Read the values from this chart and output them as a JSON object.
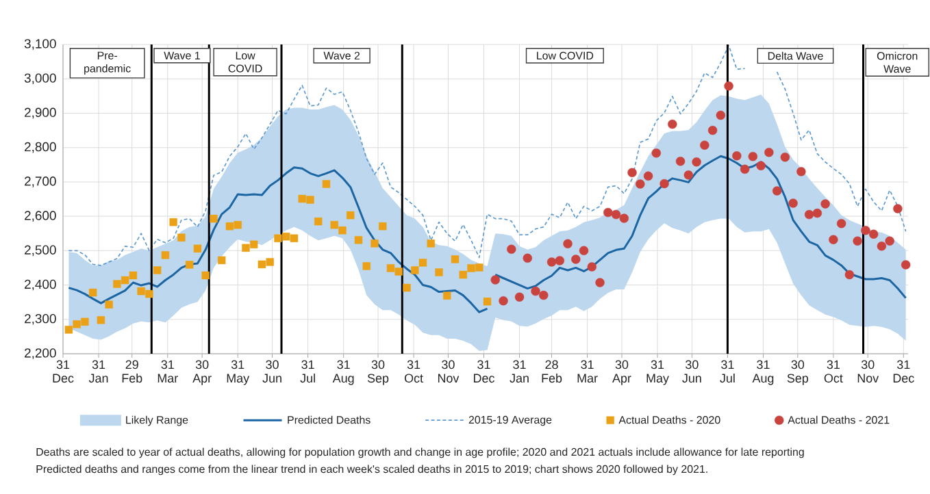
{
  "chart_data": {
    "type": "line",
    "x": [
      "2020-01-05",
      "2020-01-12",
      "2020-01-19",
      "2020-01-26",
      "2020-02-02",
      "2020-02-09",
      "2020-02-16",
      "2020-02-23",
      "2020-03-01",
      "2020-03-08",
      "2020-03-15",
      "2020-03-22",
      "2020-03-29",
      "2020-04-05",
      "2020-04-12",
      "2020-04-19",
      "2020-04-26",
      "2020-05-03",
      "2020-05-10",
      "2020-05-17",
      "2020-05-24",
      "2020-05-31",
      "2020-06-07",
      "2020-06-14",
      "2020-06-21",
      "2020-06-28",
      "2020-07-05",
      "2020-07-12",
      "2020-07-19",
      "2020-07-26",
      "2020-08-02",
      "2020-08-09",
      "2020-08-16",
      "2020-08-23",
      "2020-08-30",
      "2020-09-06",
      "2020-09-13",
      "2020-09-20",
      "2020-09-27",
      "2020-10-04",
      "2020-10-11",
      "2020-10-18",
      "2020-10-25",
      "2020-11-01",
      "2020-11-08",
      "2020-11-15",
      "2020-11-22",
      "2020-11-29",
      "2020-12-06",
      "2020-12-13",
      "2020-12-20",
      "2020-12-27",
      "2021-01-03",
      "2021-01-10",
      "2021-01-17",
      "2021-01-24",
      "2021-01-31",
      "2021-02-07",
      "2021-02-14",
      "2021-02-21",
      "2021-02-28",
      "2021-03-07",
      "2021-03-14",
      "2021-03-21",
      "2021-03-28",
      "2021-04-04",
      "2021-04-11",
      "2021-04-18",
      "2021-04-25",
      "2021-05-02",
      "2021-05-09",
      "2021-05-16",
      "2021-05-23",
      "2021-05-30",
      "2021-06-06",
      "2021-06-13",
      "2021-06-20",
      "2021-06-27",
      "2021-07-04",
      "2021-07-11",
      "2021-07-18",
      "2021-07-25",
      "2021-08-01",
      "2021-08-08",
      "2021-08-15",
      "2021-08-22",
      "2021-08-29",
      "2021-09-05",
      "2021-09-12",
      "2021-09-19",
      "2021-09-26",
      "2021-10-03",
      "2021-10-10",
      "2021-10-17",
      "2021-10-24",
      "2021-10-31",
      "2021-11-07",
      "2021-11-14",
      "2021-11-21",
      "2021-11-28",
      "2021-12-05",
      "2021-12-12",
      "2021-12-19",
      "2021-12-26",
      "2022-01-02"
    ],
    "xlim": [
      "2019-12-31",
      "2022-01-04"
    ],
    "xticks": [
      {
        "value": "2019-12-31",
        "label": "31 Dec"
      },
      {
        "value": "2020-01-31",
        "label": "31 Jan"
      },
      {
        "value": "2020-02-29",
        "label": "29 Feb"
      },
      {
        "value": "2020-03-31",
        "label": "31 Mar"
      },
      {
        "value": "2020-04-30",
        "label": "30 Apr"
      },
      {
        "value": "2020-05-31",
        "label": "31 May"
      },
      {
        "value": "2020-06-30",
        "label": "30 Jun"
      },
      {
        "value": "2020-07-31",
        "label": "31 Jul"
      },
      {
        "value": "2020-08-31",
        "label": "31 Aug"
      },
      {
        "value": "2020-09-30",
        "label": "30 Sep"
      },
      {
        "value": "2020-10-31",
        "label": "31 Oct"
      },
      {
        "value": "2020-11-30",
        "label": "30 Nov"
      },
      {
        "value": "2020-12-31",
        "label": "31 Dec"
      },
      {
        "value": "2021-01-31",
        "label": "31 Jan"
      },
      {
        "value": "2021-02-28",
        "label": "28 Feb"
      },
      {
        "value": "2021-03-31",
        "label": "31 Mar"
      },
      {
        "value": "2021-04-30",
        "label": "30 Apr"
      },
      {
        "value": "2021-05-31",
        "label": "31 May"
      },
      {
        "value": "2021-06-30",
        "label": "30 Jun"
      },
      {
        "value": "2021-07-31",
        "label": "31 Jul"
      },
      {
        "value": "2021-08-31",
        "label": "31 Aug"
      },
      {
        "value": "2021-09-30",
        "label": "30 Sep"
      },
      {
        "value": "2021-10-31",
        "label": "31 Oct"
      },
      {
        "value": "2021-11-30",
        "label": "30 Nov"
      },
      {
        "value": "2021-12-31",
        "label": "31 Dec"
      }
    ],
    "ylim": [
      2200,
      3100
    ],
    "yticks": [
      {
        "value": 2200,
        "label": "2,200"
      },
      {
        "value": 2300,
        "label": "2,300"
      },
      {
        "value": 2400,
        "label": "2,400"
      },
      {
        "value": 2500,
        "label": "2,500"
      },
      {
        "value": 2600,
        "label": "2,600"
      },
      {
        "value": 2700,
        "label": "2,700"
      },
      {
        "value": 2800,
        "label": "2,800"
      },
      {
        "value": 2900,
        "label": "2,900"
      },
      {
        "value": 3000,
        "label": "3,000"
      },
      {
        "value": 3100,
        "label": "3,100"
      }
    ],
    "grid": true,
    "legend": "bottom",
    "series": [
      {
        "name": "Likely Range",
        "type": "area",
        "color": "#bdd7ee",
        "values": [
          null,
          null,
          null,
          null,
          null,
          null,
          null,
          null,
          null,
          null,
          null,
          null,
          null,
          null,
          null,
          null,
          null,
          null,
          null,
          null,
          null,
          null,
          null,
          null,
          null,
          null,
          null,
          null,
          null,
          null,
          null,
          null,
          null,
          null,
          null,
          null,
          null,
          null,
          null,
          null,
          null,
          null,
          null,
          null,
          null,
          null,
          null,
          null,
          null,
          null,
          null,
          null,
          null,
          null,
          null,
          null,
          null,
          null,
          null,
          null,
          null,
          null,
          null,
          null,
          null,
          null,
          null,
          null,
          null,
          null,
          null,
          null,
          null,
          null,
          null,
          null,
          null,
          null,
          null,
          null,
          null,
          null,
          null,
          null,
          null,
          null,
          null,
          null,
          null,
          null,
          null,
          null,
          null,
          null,
          null,
          null,
          null,
          null,
          null,
          null,
          null,
          null,
          null,
          null,
          null
        ],
        "lower": [
          2274,
          2264,
          2254,
          2244,
          2241,
          2251,
          2264,
          2274,
          2288,
          2294,
          2291,
          2297,
          2291,
          2311,
          2334,
          2344,
          2351,
          2384,
          2450,
          2483,
          2510,
          2533,
          2526,
          2523,
          2516,
          2530,
          2546,
          2559,
          2569,
          2559,
          2543,
          2530,
          2536,
          2543,
          2536,
          2503,
          2445,
          2370,
          2344,
          2327,
          2327,
          2314,
          2297,
          2284,
          2261,
          2254,
          2254,
          2244,
          2244,
          2238,
          2228,
          2208,
          2211,
          2305,
          2298,
          2294,
          2281,
          2279,
          2288,
          2301,
          2311,
          2327,
          2327,
          2337,
          2324,
          2337,
          2360,
          2377,
          2387,
          2387,
          2437,
          2496,
          2533,
          2559,
          2580,
          2566,
          2559,
          2550,
          2569,
          2583,
          2589,
          2593,
          2593,
          2569,
          2553,
          2556,
          2556,
          2563,
          2523,
          2463,
          2404,
          2370,
          2341,
          2327,
          2314,
          2307,
          2297,
          2284,
          2281,
          2278,
          2281,
          2278,
          2271,
          2258,
          2238
        ],
        "upper": [
          2496,
          2493,
          2473,
          2457,
          2457,
          2470,
          2473,
          2487,
          2496,
          2506,
          2500,
          2510,
          2520,
          2530,
          2557,
          2569,
          2573,
          2599,
          2680,
          2715,
          2755,
          2785,
          2795,
          2808,
          2828,
          2861,
          2891,
          2911,
          2916,
          2916,
          2911,
          2911,
          2918,
          2924,
          2911,
          2881,
          2835,
          2775,
          2729,
          2682,
          2656,
          2629,
          2603,
          2593,
          2569,
          2526,
          2516,
          2513,
          2503,
          2490,
          2473,
          2463,
          2455,
          2550,
          2548,
          2543,
          2513,
          2503,
          2510,
          2530,
          2543,
          2556,
          2559,
          2569,
          2583,
          2589,
          2596,
          2612,
          2619,
          2632,
          2682,
          2729,
          2775,
          2808,
          2841,
          2848,
          2848,
          2851,
          2874,
          2908,
          2938,
          2952,
          2949,
          2942,
          2938,
          2946,
          2954,
          2928,
          2868,
          2802,
          2765,
          2740,
          2709,
          2682,
          2656,
          2632,
          2603,
          2589,
          2579,
          2569,
          2556,
          2553,
          2543,
          2523,
          2503
        ]
      },
      {
        "name": "Predicted Deaths",
        "type": "line",
        "color": "#1c65a3",
        "line_style": "solid",
        "marker": "none",
        "x": [
          "2020-01-05",
          "2020-01-12",
          "2020-01-19",
          "2020-01-26",
          "2020-02-02",
          "2020-02-09",
          "2020-02-16",
          "2020-02-23",
          "2020-03-01",
          "2020-03-08",
          "2020-03-15",
          "2020-03-22",
          "2020-03-29",
          "2020-04-05",
          "2020-04-12",
          "2020-04-19",
          "2020-04-26",
          "2020-05-03",
          "2020-05-10",
          "2020-05-17",
          "2020-05-24",
          "2020-05-31",
          "2020-06-07",
          "2020-06-14",
          "2020-06-21",
          "2020-06-28",
          "2020-07-05",
          "2020-07-12",
          "2020-07-19",
          "2020-07-26",
          "2020-08-02",
          "2020-08-09",
          "2020-08-16",
          "2020-08-23",
          "2020-08-30",
          "2020-09-06",
          "2020-09-13",
          "2020-09-20",
          "2020-09-27",
          "2020-10-04",
          "2020-10-11",
          "2020-10-18",
          "2020-10-25",
          "2020-11-01",
          "2020-11-08",
          "2020-11-15",
          "2020-11-22",
          "2020-11-29",
          "2020-12-06",
          "2020-12-13",
          "2020-12-20",
          "2020-12-27",
          "2021-01-03"
        ],
        "values": [
          2392,
          2385,
          2374,
          2360,
          2347,
          2360,
          2372,
          2384,
          2407,
          2399,
          2405,
          2395,
          2414,
          2430,
          2450,
          2460,
          2463,
          2503,
          2560,
          2606,
          2626,
          2664,
          2662,
          2664,
          2662,
          2689,
          2705,
          2725,
          2742,
          2739,
          2725,
          2717,
          2725,
          2734,
          2712,
          2685,
          2626,
          2566,
          2530,
          2503,
          2493,
          2467,
          2447,
          2430,
          2400,
          2394,
          2380,
          2382,
          2384,
          2370,
          2347,
          2321,
          2331
        ]
      },
      {
        "type": "line",
        "color": "#1c65a3",
        "line_style": "solid",
        "marker": "none",
        "x": [
          "2021-01-10",
          "2021-01-17",
          "2021-01-24",
          "2021-01-31",
          "2021-02-07",
          "2021-02-14",
          "2021-02-21",
          "2021-02-28",
          "2021-03-07",
          "2021-03-14",
          "2021-03-21",
          "2021-03-28",
          "2021-04-04",
          "2021-04-11",
          "2021-04-18",
          "2021-04-25",
          "2021-05-02",
          "2021-05-09",
          "2021-05-16",
          "2021-05-23",
          "2021-05-30",
          "2021-06-06",
          "2021-06-13",
          "2021-06-20",
          "2021-06-27",
          "2021-07-04",
          "2021-07-11",
          "2021-07-18",
          "2021-07-25",
          "2021-08-01",
          "2021-08-08",
          "2021-08-15",
          "2021-08-22",
          "2021-08-29",
          "2021-09-05",
          "2021-09-12",
          "2021-09-19",
          "2021-09-26",
          "2021-10-03",
          "2021-10-10",
          "2021-10-17",
          "2021-10-24",
          "2021-10-31",
          "2021-11-07",
          "2021-11-14",
          "2021-11-21",
          "2021-11-28",
          "2021-12-05",
          "2021-12-12",
          "2021-12-19",
          "2021-12-26",
          "2022-01-02"
        ],
        "values": [
          2430,
          2420,
          2410,
          2400,
          2390,
          2397,
          2414,
          2427,
          2450,
          2443,
          2450,
          2440,
          2453,
          2473,
          2493,
          2502,
          2506,
          2543,
          2603,
          2652,
          2672,
          2695,
          2710,
          2705,
          2699,
          2729,
          2748,
          2762,
          2775,
          2768,
          2755,
          2739,
          2745,
          2758,
          2739,
          2709,
          2656,
          2589,
          2556,
          2526,
          2516,
          2486,
          2473,
          2457,
          2433,
          2425,
          2417,
          2417,
          2420,
          2414,
          2390,
          2362
        ]
      },
      {
        "name": "2015-19 Average",
        "type": "line",
        "color": "#5d9ad2",
        "line_style": "dashed",
        "marker": "none",
        "values": [
          2500,
          2500,
          2488,
          2460,
          2457,
          2467,
          2477,
          2513,
          2510,
          2550,
          2500,
          2533,
          2523,
          2536,
          2589,
          2593,
          2569,
          2616,
          2719,
          2729,
          2775,
          2802,
          2841,
          2795,
          2828,
          2868,
          2908,
          2898,
          2941,
          2981,
          2921,
          2924,
          2973,
          2955,
          2962,
          2908,
          2845,
          2768,
          2722,
          2755,
          2685,
          2669,
          2649,
          2629,
          2603,
          2530,
          2583,
          2550,
          2528,
          2576,
          2530,
          2480,
          2606,
          2593,
          2593,
          2586,
          2546,
          2546,
          2563,
          2569,
          2606,
          2596,
          2641,
          2593,
          2629,
          2616,
          2629,
          2685,
          2689,
          2666,
          2709,
          2815,
          2825,
          2878,
          2901,
          2949,
          2898,
          2928,
          2964,
          3017,
          3004,
          3047,
          3097,
          3028,
          3030,
          null,
          null,
          null,
          3020,
          2970,
          2900,
          2822,
          2851,
          2782,
          2758,
          2739,
          2722,
          2695,
          2629,
          2679,
          2642,
          2616,
          2676,
          2629,
          2556
        ]
      },
      {
        "name": "Actual Deaths - 2020",
        "type": "scatter",
        "color": "#eba117",
        "marker": "square",
        "x": [
          "2020-01-05",
          "2020-01-12",
          "2020-01-19",
          "2020-01-26",
          "2020-02-02",
          "2020-02-09",
          "2020-02-16",
          "2020-02-23",
          "2020-03-01",
          "2020-03-08",
          "2020-03-15",
          "2020-03-22",
          "2020-03-29",
          "2020-04-05",
          "2020-04-12",
          "2020-04-19",
          "2020-04-26",
          "2020-05-03",
          "2020-05-10",
          "2020-05-17",
          "2020-05-24",
          "2020-05-31",
          "2020-06-07",
          "2020-06-14",
          "2020-06-21",
          "2020-06-28",
          "2020-07-05",
          "2020-07-12",
          "2020-07-19",
          "2020-07-26",
          "2020-08-02",
          "2020-08-09",
          "2020-08-16",
          "2020-08-23",
          "2020-08-30",
          "2020-09-06",
          "2020-09-13",
          "2020-09-20",
          "2020-09-27",
          "2020-10-04",
          "2020-10-11",
          "2020-10-18",
          "2020-10-25",
          "2020-11-01",
          "2020-11-08",
          "2020-11-15",
          "2020-11-22",
          "2020-11-29",
          "2020-12-06",
          "2020-12-13",
          "2020-12-20",
          "2020-12-27",
          "2021-01-03"
        ],
        "values": [
          2270,
          2286,
          2293,
          2378,
          2298,
          2343,
          2403,
          2414,
          2428,
          2382,
          2374,
          2443,
          2487,
          2583,
          2538,
          2459,
          2506,
          2428,
          2593,
          2472,
          2571,
          2575,
          2508,
          2518,
          2460,
          2467,
          2536,
          2541,
          2536,
          2651,
          2648,
          2585,
          2694,
          2575,
          2559,
          2603,
          2531,
          2455,
          2521,
          2571,
          2449,
          2439,
          2392,
          2443,
          2465,
          2521,
          2437,
          2369,
          2475,
          2430,
          2449,
          2451,
          2352
        ]
      },
      {
        "name": "Actual Deaths - 2021",
        "type": "scatter",
        "color": "#c9443e",
        "marker": "circle",
        "x": [
          "2021-01-10",
          "2021-01-17",
          "2021-01-24",
          "2021-01-31",
          "2021-02-07",
          "2021-02-14",
          "2021-02-21",
          "2021-02-28",
          "2021-03-07",
          "2021-03-14",
          "2021-03-21",
          "2021-03-28",
          "2021-04-04",
          "2021-04-11",
          "2021-04-18",
          "2021-04-25",
          "2021-05-02",
          "2021-05-09",
          "2021-05-16",
          "2021-05-23",
          "2021-05-30",
          "2021-06-06",
          "2021-06-13",
          "2021-06-20",
          "2021-06-27",
          "2021-07-04",
          "2021-07-11",
          "2021-07-18",
          "2021-07-25",
          "2021-08-01",
          "2021-08-08",
          "2021-08-15",
          "2021-08-22",
          "2021-08-29",
          "2021-09-05",
          "2021-09-12",
          "2021-09-19",
          "2021-09-26",
          "2021-10-03",
          "2021-10-10",
          "2021-10-17",
          "2021-10-24",
          "2021-10-31",
          "2021-11-07",
          "2021-11-14",
          "2021-11-21",
          "2021-11-28",
          "2021-12-05",
          "2021-12-12",
          "2021-12-19",
          "2021-12-26",
          "2022-01-02"
        ],
        "values": [
          2415,
          2354,
          2504,
          2365,
          2478,
          2382,
          2370,
          2467,
          2471,
          2520,
          2475,
          2500,
          2453,
          2407,
          2611,
          2605,
          2594,
          2727,
          2694,
          2717,
          2784,
          2695,
          2868,
          2760,
          2720,
          2758,
          2807,
          2850,
          2894,
          2979,
          2776,
          2737,
          2774,
          2747,
          2786,
          2674,
          2772,
          2638,
          2730,
          2605,
          2609,
          2636,
          2532,
          2579,
          2430,
          2528,
          2559,
          2548,
          2513,
          2528,
          2622,
          2459
        ]
      }
    ],
    "ref_lines": [
      {
        "axis": "x",
        "value": "2020-03-17",
        "color": "#000000"
      },
      {
        "axis": "x",
        "value": "2020-05-06",
        "color": "#000000"
      },
      {
        "axis": "x",
        "value": "2020-07-08",
        "color": "#000000"
      },
      {
        "axis": "x",
        "value": "2020-10-21",
        "color": "#000000"
      },
      {
        "axis": "x",
        "value": "2021-07-31",
        "color": "#000000"
      },
      {
        "axis": "x",
        "value": "2021-11-26",
        "color": "#000000"
      }
    ],
    "annotations": [
      "Pre-pandemic",
      "Wave 1",
      "Low COVID",
      "Wave 2",
      "Low COVID",
      "Delta Wave",
      "Omicron Wave",
      "Deaths are scaled to year of actual deaths, allowing for population growth and change in age profile; 2020 and 2021 actuals include allowance for late reporting",
      "Predicted deaths and ranges come from the linear trend in each week's scaled deaths in 2015 to 2019; chart shows 2020 followed by 2021."
    ]
  }
}
